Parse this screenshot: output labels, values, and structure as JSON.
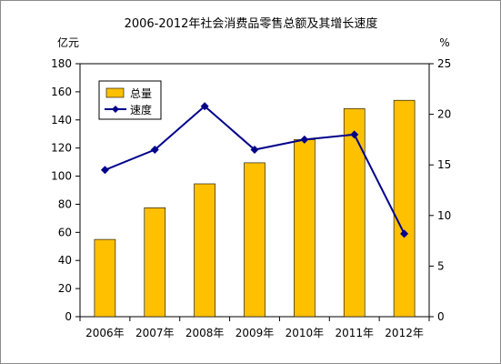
{
  "chart_data": {
    "type": "bar",
    "title": "2006-2012年社会消费品零售总额及其增长速度",
    "categories": [
      "2006年",
      "2007年",
      "2008年",
      "2009年",
      "2010年",
      "2011年",
      "2012年"
    ],
    "series": [
      {
        "name": "总量",
        "type": "bar",
        "axis": "left",
        "color": "#FFC000",
        "values": [
          55,
          77.5,
          94.5,
          109.5,
          126,
          148,
          154
        ]
      },
      {
        "name": "速度",
        "type": "line",
        "axis": "right",
        "color": "#00008B",
        "marker": "diamond",
        "values": [
          14.5,
          16.5,
          20.8,
          16.5,
          17.5,
          18,
          8.2
        ]
      }
    ],
    "y_left": {
      "unit": "亿元",
      "ylim": [
        0,
        180
      ],
      "ticks": [
        0,
        20,
        40,
        60,
        80,
        100,
        120,
        140,
        160,
        180
      ]
    },
    "y_right": {
      "unit": "%",
      "ylim": [
        0,
        25
      ],
      "ticks": [
        0,
        5,
        10,
        15,
        20,
        25
      ]
    },
    "grid": false,
    "legend_position": "top-left"
  }
}
